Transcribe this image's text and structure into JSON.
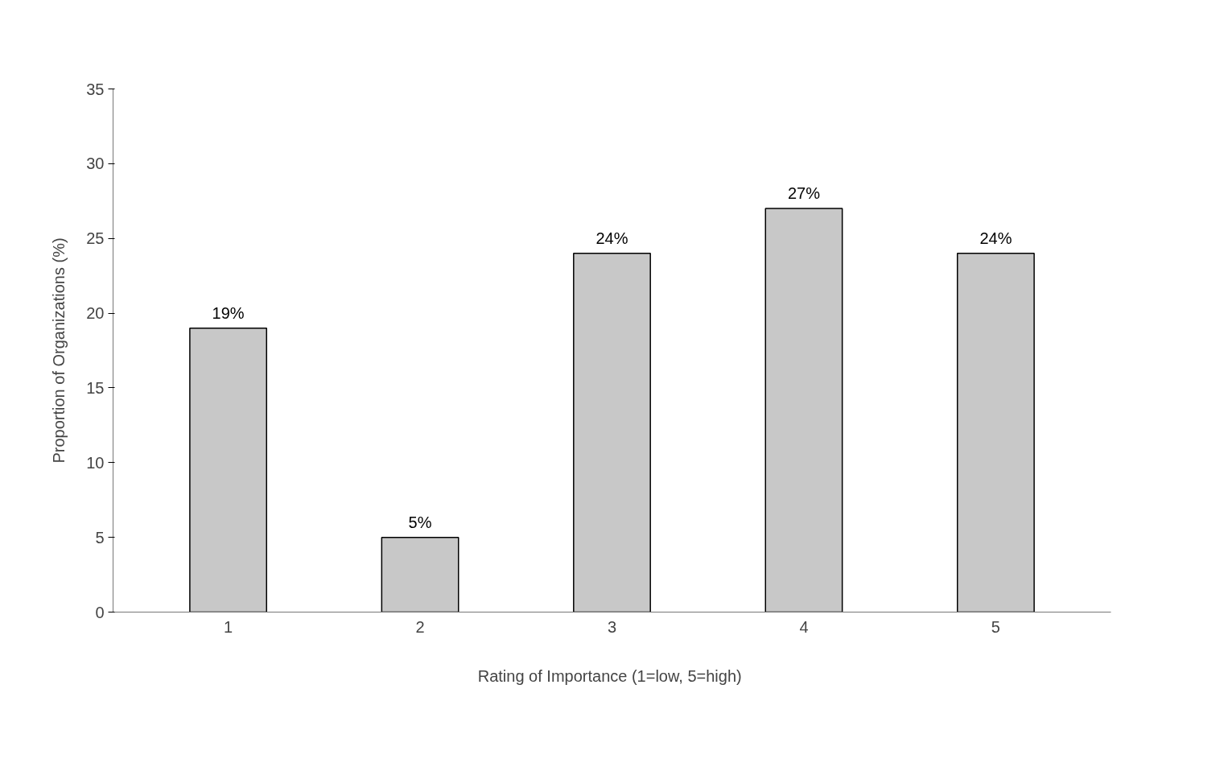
{
  "chart_data": {
    "type": "bar",
    "xlabel": "Rating of Importance  (1=low, 5=high)",
    "ylabel": "Proportion of Organizations (%)",
    "categories": [
      "1",
      "2",
      "3",
      "4",
      "5"
    ],
    "values": [
      19,
      5,
      24,
      27,
      24
    ],
    "value_labels": [
      "19%",
      "5%",
      "24%",
      "27%",
      "24%"
    ],
    "color": "#c8c8c8",
    "ylim": [
      0,
      35
    ],
    "yticks": [
      0,
      5,
      10,
      15,
      20,
      25,
      30,
      35
    ],
    "grid": false
  }
}
